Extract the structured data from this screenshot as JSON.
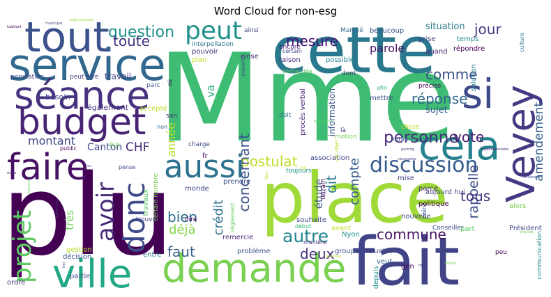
{
  "title": "Word Cloud for non-esg",
  "words": [
    {
      "text": "plu",
      "color": "#440154"
    },
    {
      "text": "Mme",
      "color": "#3fbc73"
    },
    {
      "text": "fait",
      "color": "#414487"
    },
    {
      "text": "place",
      "color": "#a0da39"
    },
    {
      "text": "cette",
      "color": "#2a788e"
    },
    {
      "text": "service",
      "color": "#31688e"
    },
    {
      "text": "tout",
      "color": "#3b528b"
    },
    {
      "text": "séance",
      "color": "#46327e"
    },
    {
      "text": "budget",
      "color": "#482475"
    },
    {
      "text": "faire",
      "color": "#471063"
    },
    {
      "text": "ville",
      "color": "#22a884"
    },
    {
      "text": "demande",
      "color": "#7ad151"
    },
    {
      "text": "peut",
      "color": "#21918c"
    },
    {
      "text": "si",
      "color": "#3e4989"
    },
    {
      "text": "cela",
      "color": "#26828e"
    },
    {
      "text": "Vevey",
      "color": "#443983"
    },
    {
      "text": "aussi",
      "color": "#2c728e"
    },
    {
      "text": "discussion",
      "color": "#365c8d"
    },
    {
      "text": "donc",
      "color": "#3e4a89"
    },
    {
      "text": "projet",
      "color": "#5ec962"
    },
    {
      "text": "avoir",
      "color": "#482878"
    },
    {
      "text": "question",
      "color": "#21918c"
    },
    {
      "text": "toute",
      "color": "#46337e"
    },
    {
      "text": "mesure",
      "color": "#440f76"
    },
    {
      "text": "jour",
      "color": "#443a83"
    },
    {
      "text": "situation",
      "color": "#2a788e"
    },
    {
      "text": "comme",
      "color": "#3b528b"
    },
    {
      "text": "réponse",
      "color": "#31688e"
    },
    {
      "text": "parole",
      "color": "#471365"
    },
    {
      "text": "personne",
      "color": "#472d7b"
    },
    {
      "text": "vote",
      "color": "#481a6c"
    },
    {
      "text": "amendement",
      "color": "#34618d"
    },
    {
      "text": "postulat",
      "color": "#bddf26"
    },
    {
      "text": "concernant",
      "color": "#3b528b"
    },
    {
      "text": "crédit",
      "color": "#2d708e"
    },
    {
      "text": "étude",
      "color": "#39558c"
    },
    {
      "text": "dit",
      "color": "#297b8e"
    },
    {
      "text": "compte",
      "color": "#365d8d"
    },
    {
      "text": "autre",
      "color": "#24868e"
    },
    {
      "text": "commune",
      "color": "#481467"
    },
    {
      "text": "rappelle",
      "color": "#3d4d8a"
    },
    {
      "text": "tous",
      "color": "#453882"
    },
    {
      "text": "deux",
      "color": "#46307e"
    },
    {
      "text": "bien",
      "color": "#2e6e8e"
    },
    {
      "text": "déjà",
      "color": "#86d549"
    },
    {
      "text": "faut",
      "color": "#355f8d"
    },
    {
      "text": "très",
      "color": "#75d054"
    },
    {
      "text": "montant",
      "color": "#3f4788"
    },
    {
      "text": "CHF",
      "color": "#472c7a"
    },
    {
      "text": "année",
      "color": "#b5de2b"
    },
    {
      "text": "Canton",
      "color": "#3e4c8a"
    },
    {
      "text": "va",
      "color": "#2ab07f"
    },
    {
      "text": "travail",
      "color": "#414487"
    },
    {
      "text": "besoin",
      "color": "#3f4889"
    },
    {
      "text": "également",
      "color": "#46317e"
    },
    {
      "text": "accepté",
      "color": "#bddf26"
    },
    {
      "text": "population",
      "color": "#414487"
    },
    {
      "text": "peut être",
      "color": "#433e85"
    },
    {
      "text": "plan",
      "color": "#c2df23"
    },
    {
      "text": "pouvoir",
      "color": "#46337e"
    },
    {
      "text": "interpellation",
      "color": "#2c728e"
    },
    {
      "text": "close",
      "color": "#472878"
    },
    {
      "text": "ouverte",
      "color": "#3b528b"
    },
    {
      "text": "ainsi",
      "color": "#404588"
    },
    {
      "text": "encore",
      "color": "#481c6e"
    },
    {
      "text": "raison",
      "color": "#472d7b"
    },
    {
      "text": "certain",
      "color": "#3e4a89"
    },
    {
      "text": "demandée",
      "color": "#5ec962"
    },
    {
      "text": "possible",
      "color": "#26828e"
    },
    {
      "text": "prise",
      "color": "#414487"
    },
    {
      "text": "quand",
      "color": "#482475"
    },
    {
      "text": "temps",
      "color": "#21918c"
    },
    {
      "text": "répondre",
      "color": "#440154"
    },
    {
      "text": "culture",
      "color": "#2a788e"
    },
    {
      "text": "beaucoup",
      "color": "#3b528b"
    },
    {
      "text": "Marché",
      "color": "#31688e"
    },
    {
      "text": "dont",
      "color": "#46327e"
    },
    {
      "text": "afin",
      "color": "#35b779"
    },
    {
      "text": "mettre",
      "color": "#3e4989"
    },
    {
      "text": "information",
      "color": "#3b528b"
    },
    {
      "text": "procès verbal",
      "color": "#472878"
    },
    {
      "text": "précise",
      "color": "#440154"
    },
    {
      "text": "solution",
      "color": "#26828e"
    },
    {
      "text": "sujet",
      "color": "#365c8d"
    },
    {
      "text": "chose",
      "color": "#c2df23"
    },
    {
      "text": "notamment",
      "color": "#3b528b"
    },
    {
      "text": "doit",
      "color": "#2c728e"
    },
    {
      "text": "là",
      "color": "#46337e"
    },
    {
      "text": "motion",
      "color": "#7ad151"
    },
    {
      "text": "association",
      "color": "#414487"
    },
    {
      "text": "fr",
      "color": "#440154"
    },
    {
      "text": "charge",
      "color": "#3e4a89"
    },
    {
      "text": "san",
      "color": "#472d7b"
    },
    {
      "text": "non",
      "color": "#31688e"
    },
    {
      "text": "parc",
      "color": "#3b528b"
    },
    {
      "text": "où",
      "color": "#440154"
    },
    {
      "text": "PLR",
      "color": "#7ad151"
    },
    {
      "text": "public",
      "color": "#440154"
    },
    {
      "text": "pense",
      "color": "#3e4a89"
    },
    {
      "text": "toujours",
      "color": "#21918c"
    },
    {
      "text": "terrain",
      "color": "#440154"
    },
    {
      "text": "ca",
      "color": "#bddf26"
    },
    {
      "text": "prendre",
      "color": "#3b528b"
    },
    {
      "text": "monde",
      "color": "#414487"
    },
    {
      "text": "travaux",
      "color": "#5ec962"
    },
    {
      "text": "règlement",
      "color": "#5ec962"
    },
    {
      "text": "dire",
      "color": "#440154"
    },
    {
      "text": "trouve",
      "color": "#414487"
    },
    {
      "text": "remercie",
      "color": "#482475"
    },
    {
      "text": "problème",
      "color": "#3b528b"
    },
    {
      "text": "entre",
      "color": "#2c728e"
    },
    {
      "text": "début",
      "color": "#35b779"
    },
    {
      "text": "souhaite",
      "color": "#414487"
    },
    {
      "text": "manière",
      "color": "#46337e"
    },
    {
      "text": "groupe",
      "color": "#3b528b"
    },
    {
      "text": "Nyon",
      "color": "#21918c"
    },
    {
      "text": "avant",
      "color": "#bddf26"
    },
    {
      "text": "conclusion",
      "color": "#414487"
    },
    {
      "text": "veut",
      "color": "#365c8d"
    },
    {
      "text": "depuis",
      "color": "#21918c"
    },
    {
      "text": "gen",
      "color": "#440154"
    },
    {
      "text": "mise",
      "color": "#414487"
    },
    {
      "text": "parce",
      "color": "#46337e"
    },
    {
      "text": "point",
      "color": "#3b528b"
    },
    {
      "text": "aujourd hui",
      "color": "#414487"
    },
    {
      "text": "politique",
      "color": "#440154"
    },
    {
      "text": "nouvelle",
      "color": "#414487"
    },
    {
      "text": "Conseiller",
      "color": "#3e4a89"
    },
    {
      "text": "part",
      "color": "#5ec962"
    },
    {
      "text": "Président",
      "color": "#414487"
    },
    {
      "text": "communication",
      "color": "#21918c"
    },
    {
      "text": "alors",
      "color": "#7ad151"
    },
    {
      "text": "décision",
      "color": "#3b528b"
    },
    {
      "text": "gestion",
      "color": "#bddf26"
    },
    {
      "text": "partie",
      "color": "#3e4a89"
    },
    {
      "text": "ordre",
      "color": "#46337e"
    },
    {
      "text": "peu",
      "color": "#440154"
    },
    {
      "text": "augmentation",
      "color": "#9fda3a"
    },
    {
      "text": "habitant",
      "color": "#440154"
    },
    {
      "text": "parking",
      "color": "#414487"
    },
    {
      "text": "supplémentaire",
      "color": "#46337e"
    },
    {
      "text": "nécessaire",
      "color": "#414487"
    },
    {
      "text": "cet objet",
      "color": "#bddf26"
    },
    {
      "text": "proposition",
      "color": "#5ec962"
    },
    {
      "text": "vu",
      "color": "#3b528b"
    },
    {
      "text": "école",
      "color": "#46337e"
    },
    {
      "text": "certain nombre",
      "color": "#7ad151"
    },
    {
      "text": "lieu",
      "color": "#bddf26"
    },
    {
      "text": "troi",
      "color": "#414487"
    },
    {
      "text": "abstention",
      "color": "#46337e"
    },
    {
      "text": "vraiment",
      "color": "#5ec962"
    },
    {
      "text": "fin",
      "color": "#414487"
    },
    {
      "text": "Lausanne",
      "color": "#bddf26"
    },
    {
      "text": "fond",
      "color": "#46337e"
    },
    {
      "text": "remarque",
      "color": "#3b528b"
    },
    {
      "text": "enfant",
      "color": "#7ad151"
    },
    {
      "text": "propose",
      "color": "#7ad151"
    },
    {
      "text": "municipal",
      "color": "#414487"
    },
    {
      "text": "important",
      "color": "#46337e"
    },
    {
      "text": "magnification",
      "color": "#bddf26"
    }
  ]
}
